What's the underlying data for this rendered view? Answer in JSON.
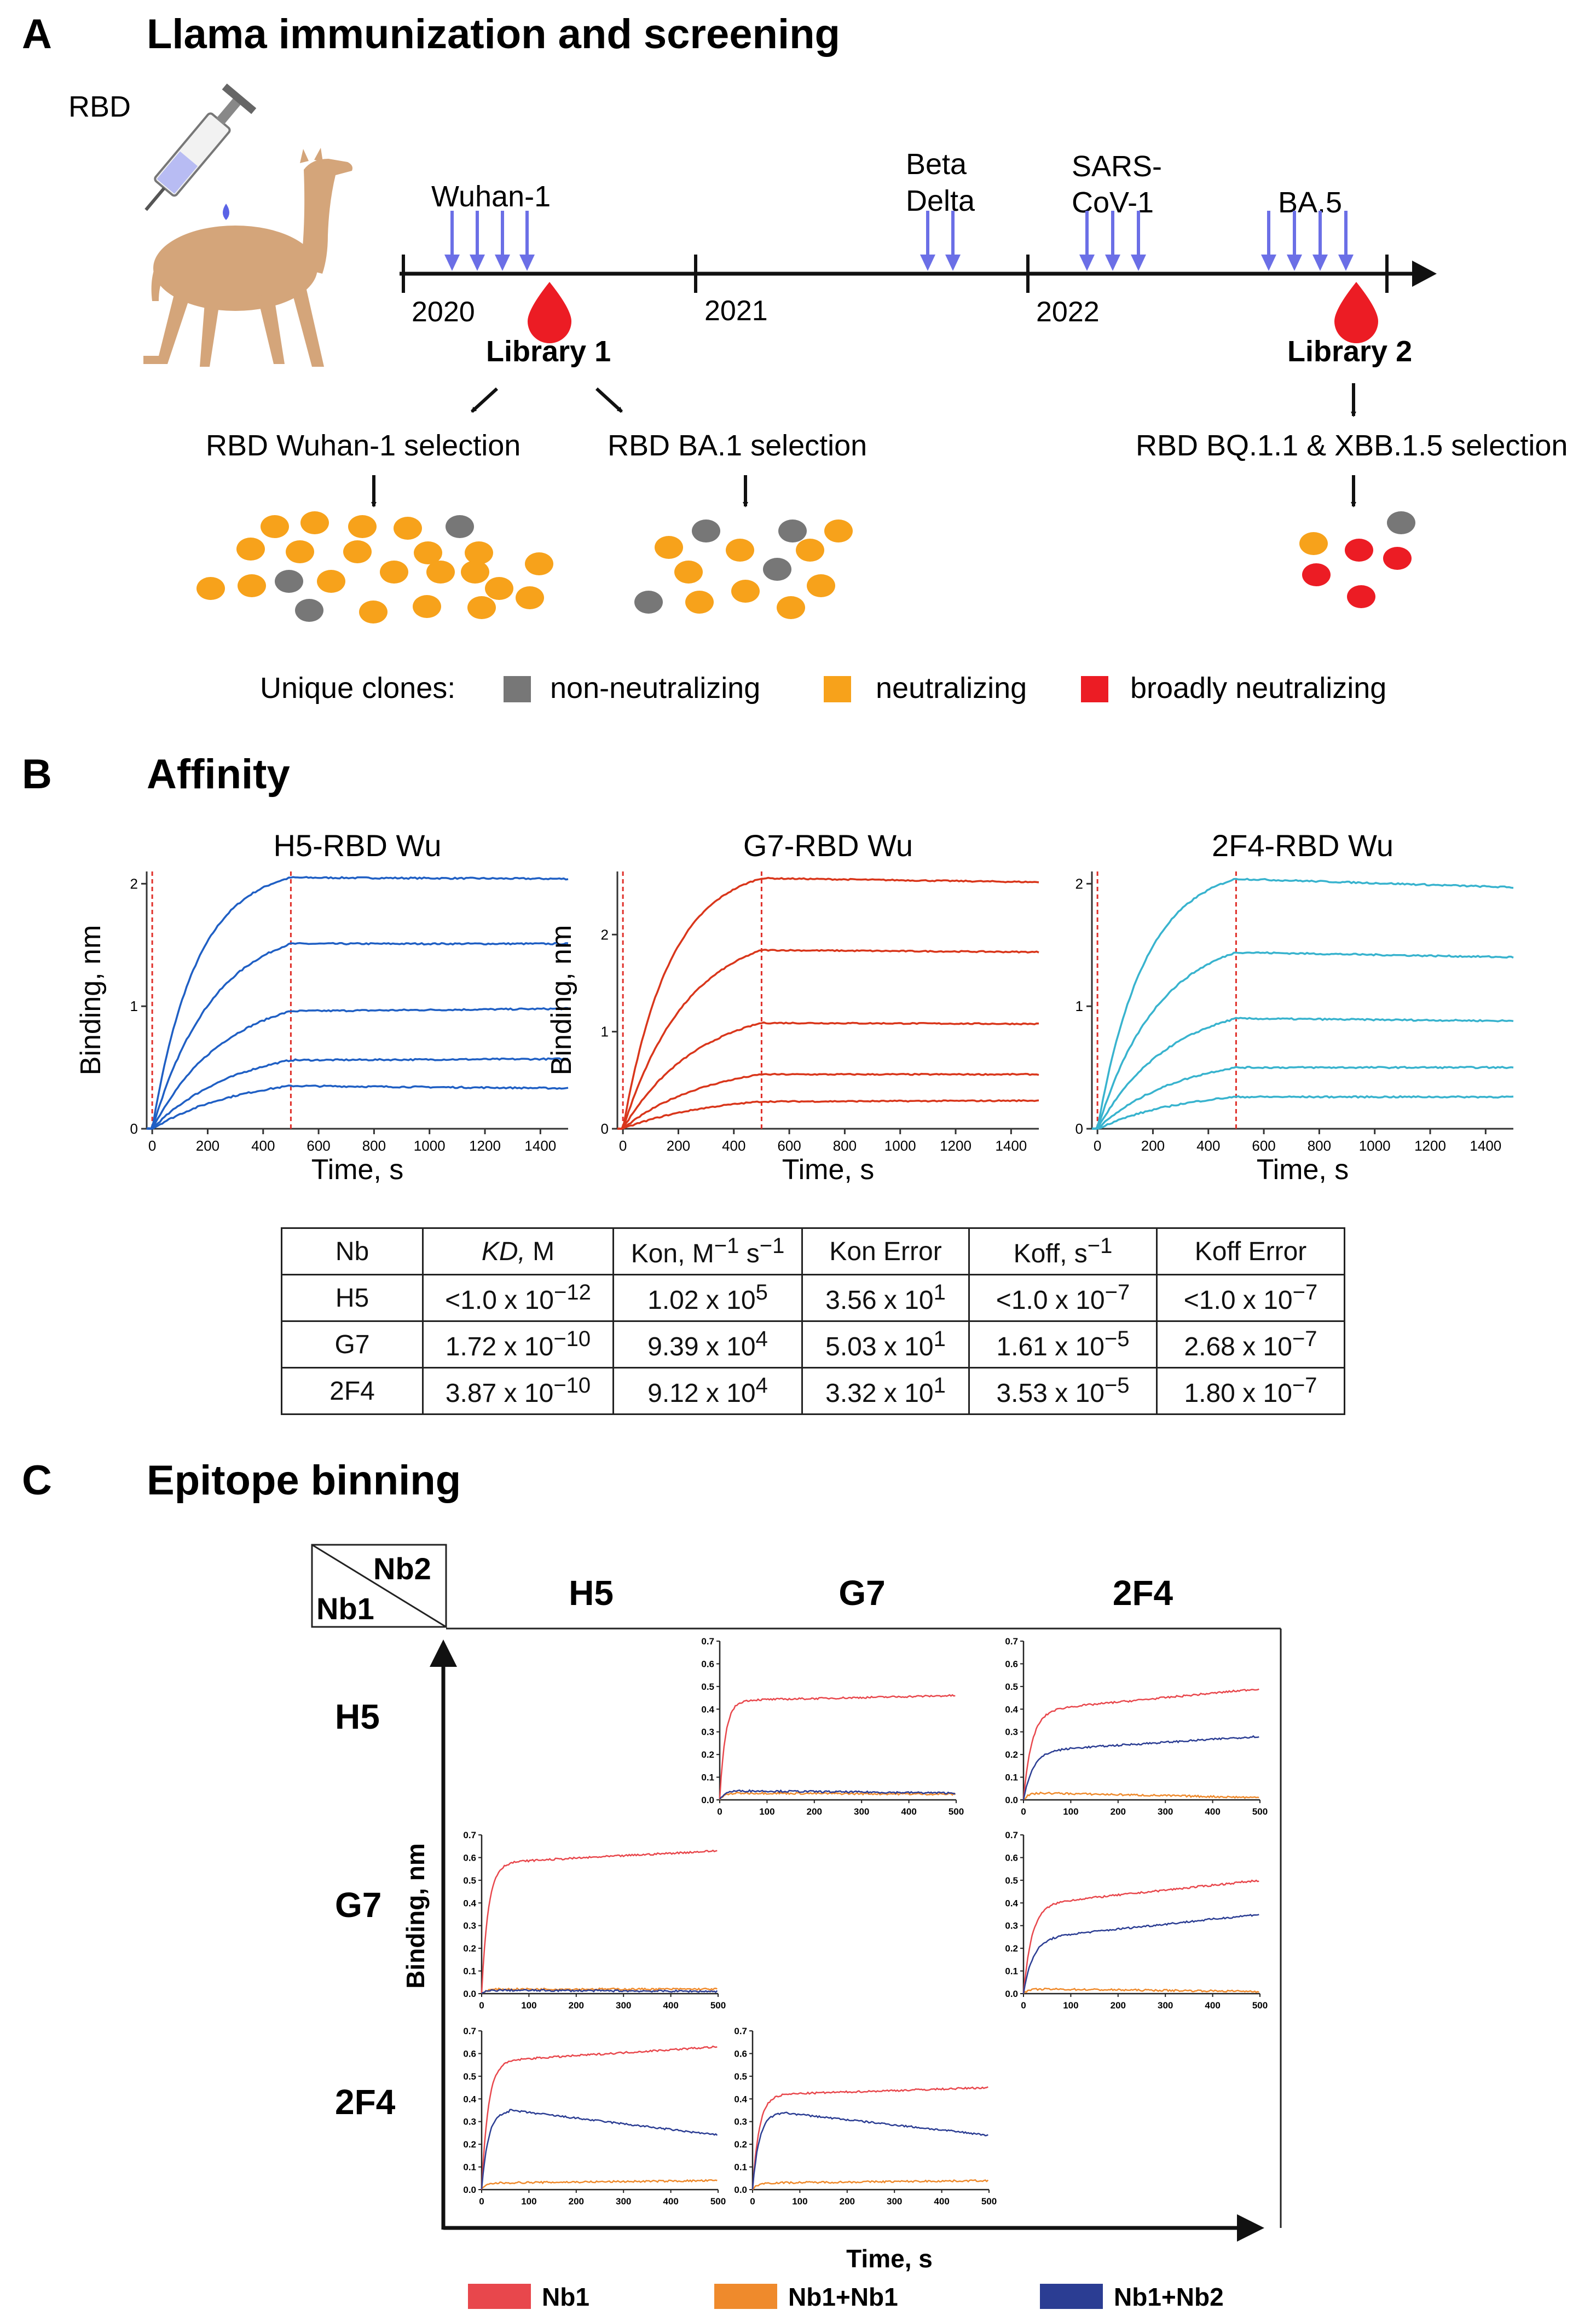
{
  "panel_a": {
    "letter": "A",
    "title": "Llama immunization and screening",
    "antigen": "RBD",
    "years": [
      "2020",
      "2021",
      "2022"
    ],
    "immunizations": [
      "Wuhan-1",
      "Beta",
      "Delta",
      "SARS-",
      "CoV-1",
      "BA.5"
    ],
    "libraries": [
      "Library 1",
      "Library 2"
    ],
    "selections": [
      "RBD Wuhan-1 selection",
      "RBD BA.1 selection",
      "RBD BQ.1.1 & XBB.1.5 selection"
    ],
    "legend_title": "Unique clones:",
    "legend": [
      {
        "label": "non-neutralizing",
        "color": "#777777"
      },
      {
        "label": "neutralizing",
        "color": "#f7a21b"
      },
      {
        "label": "broadly neutralizing",
        "color": "#ec1c24"
      }
    ]
  },
  "panel_b": {
    "letter": "B",
    "title": "Affinity",
    "table": {
      "header": [
        "Nb",
        "KD,",
        " M",
        "Kon, M",
        "−1",
        " s",
        "−1",
        "Kon Error",
        "Koff, s",
        "−1",
        "Koff Error"
      ],
      "rows": [
        [
          "H5",
          "<1.0 x 10",
          "−12",
          "1.02 x 10",
          "5",
          "3.56 x 10",
          "1",
          "<1.0 x 10",
          "−7",
          "<1.0 x 10",
          "−7"
        ],
        [
          "G7",
          "1.72 x 10",
          "−10",
          "9.39 x 10",
          "4",
          "5.03 x 10",
          "1",
          "1.61 x 10",
          "−5",
          "2.68 x 10",
          "−7"
        ],
        [
          "2F4",
          "3.87 x 10",
          "−10",
          "9.12 x 10",
          "4",
          "3.32 x 10",
          "1",
          "3.53 x 10",
          "−5",
          "1.80 x 10",
          "−7"
        ]
      ]
    }
  },
  "panel_c": {
    "letter": "C",
    "title": "Epitope binning",
    "corner_nb2": "Nb2",
    "corner_nb1": "Nb1",
    "col_labels": [
      "H5",
      "G7",
      "2F4"
    ],
    "row_labels": [
      "H5",
      "G7",
      "2F4"
    ],
    "xlabel": "Time, s",
    "ylabel": "Binding, nm",
    "legend": [
      {
        "label": "Nb1",
        "color": "#e8474c"
      },
      {
        "label": "Nb1+Nb1",
        "color": "#ef8a2c"
      },
      {
        "label": "Nb1+Nb2",
        "color": "#2b3d93"
      }
    ]
  },
  "chart_data": [
    {
      "type": "line",
      "title": "H5-RBD Wu",
      "xlabel": "Time, s",
      "ylabel": "Binding, nm",
      "xlim": [
        -20,
        1500
      ],
      "ylim": [
        0,
        2.1
      ],
      "xticks": [
        0,
        200,
        400,
        600,
        800,
        1000,
        1200,
        1400
      ],
      "yticks": [
        0,
        1,
        2
      ],
      "color": "#1f5fc4",
      "association_end": 500,
      "series": [
        {
          "name": "c1",
          "plateau": 2.05,
          "tau": 160,
          "end": 2.04
        },
        {
          "name": "c2",
          "plateau": 1.51,
          "tau": 220,
          "end": 1.51
        },
        {
          "name": "c3",
          "plateau": 0.96,
          "tau": 260,
          "end": 0.98
        },
        {
          "name": "c4",
          "plateau": 0.56,
          "tau": 300,
          "end": 0.57
        },
        {
          "name": "c5",
          "plateau": 0.35,
          "tau": 320,
          "end": 0.33
        }
      ]
    },
    {
      "type": "line",
      "title": "G7-RBD Wu",
      "xlabel": "Time, s",
      "ylabel": "Binding, nm",
      "xlim": [
        -20,
        1500
      ],
      "ylim": [
        0,
        2.65
      ],
      "xticks": [
        0,
        200,
        400,
        600,
        800,
        1000,
        1200,
        1400
      ],
      "yticks": [
        0,
        1,
        2
      ],
      "color": "#d9361b",
      "association_end": 500,
      "series": [
        {
          "name": "c1",
          "plateau": 2.58,
          "tau": 170,
          "end": 2.54
        },
        {
          "name": "c2",
          "plateau": 1.84,
          "tau": 230,
          "end": 1.82
        },
        {
          "name": "c3",
          "plateau": 1.09,
          "tau": 270,
          "end": 1.08
        },
        {
          "name": "c4",
          "plateau": 0.56,
          "tau": 300,
          "end": 0.56
        },
        {
          "name": "c5",
          "plateau": 0.28,
          "tau": 320,
          "end": 0.29
        }
      ]
    },
    {
      "type": "line",
      "title": "2F4-RBD Wu",
      "xlabel": "Time, s",
      "ylabel": "",
      "xlim": [
        -20,
        1500
      ],
      "ylim": [
        0,
        2.1
      ],
      "xticks": [
        0,
        200,
        400,
        600,
        800,
        1000,
        1200,
        1400
      ],
      "yticks": [
        0,
        1,
        2
      ],
      "color": "#38b3ce",
      "association_end": 500,
      "series": [
        {
          "name": "c1",
          "plateau": 2.04,
          "tau": 170,
          "end": 1.97
        },
        {
          "name": "c2",
          "plateau": 1.44,
          "tau": 220,
          "end": 1.4
        },
        {
          "name": "c3",
          "plateau": 0.9,
          "tau": 260,
          "end": 0.88
        },
        {
          "name": "c4",
          "plateau": 0.5,
          "tau": 290,
          "end": 0.5
        },
        {
          "name": "c5",
          "plateau": 0.26,
          "tau": 310,
          "end": 0.26
        }
      ]
    },
    {
      "type": "line",
      "title": "Nb1 H5 / Nb2 G7",
      "xlim": [
        0,
        500
      ],
      "ylim": [
        0,
        0.7
      ],
      "xticks": [
        0,
        100,
        200,
        300,
        400,
        500
      ],
      "yticks": [
        0.0,
        0.1,
        0.2,
        0.3,
        0.4,
        0.5,
        0.6,
        0.7
      ],
      "series": [
        {
          "name": "Nb1",
          "color": "#e8474c",
          "plateau": 0.44,
          "tau": 12,
          "end": 0.46
        },
        {
          "name": "Nb1+Nb1",
          "color": "#ef8a2c",
          "plateau": 0.03,
          "tau": 10,
          "end": 0.025
        },
        {
          "name": "Nb1+Nb2",
          "color": "#2b3d93",
          "plateau": 0.04,
          "tau": 10,
          "end": 0.03
        }
      ]
    },
    {
      "type": "line",
      "title": "Nb1 H5 / Nb2 2F4",
      "xlim": [
        0,
        500
      ],
      "ylim": [
        0,
        0.7
      ],
      "xticks": [
        0,
        100,
        200,
        300,
        400,
        500
      ],
      "yticks": [
        0.0,
        0.1,
        0.2,
        0.3,
        0.4,
        0.5,
        0.6,
        0.7
      ],
      "series": [
        {
          "name": "Nb1",
          "color": "#e8474c",
          "plateau": 0.4,
          "tau": 18,
          "end": 0.49
        },
        {
          "name": "Nb1+Nb1",
          "color": "#ef8a2c",
          "plateau": 0.03,
          "tau": 10,
          "end": 0.01
        },
        {
          "name": "Nb1+Nb2",
          "color": "#2b3d93",
          "plateau": 0.22,
          "tau": 20,
          "end": 0.28
        }
      ]
    },
    {
      "type": "line",
      "title": "Nb1 G7 / Nb2 H5",
      "xlim": [
        0,
        500
      ],
      "ylim": [
        0,
        0.7
      ],
      "xticks": [
        0,
        100,
        200,
        300,
        400,
        500
      ],
      "yticks": [
        0.0,
        0.1,
        0.2,
        0.3,
        0.4,
        0.5,
        0.6,
        0.7
      ],
      "series": [
        {
          "name": "Nb1",
          "color": "#e8474c",
          "plateau": 0.58,
          "tau": 14,
          "end": 0.63
        },
        {
          "name": "Nb1+Nb1",
          "color": "#ef8a2c",
          "plateau": 0.02,
          "tau": 10,
          "end": 0.02
        },
        {
          "name": "Nb1+Nb2",
          "color": "#2b3d93",
          "plateau": 0.015,
          "tau": 10,
          "end": 0.01
        }
      ]
    },
    {
      "type": "line",
      "title": "Nb1 G7 / Nb2 2F4",
      "xlim": [
        0,
        500
      ],
      "ylim": [
        0,
        0.7
      ],
      "xticks": [
        0,
        100,
        200,
        300,
        400,
        500
      ],
      "yticks": [
        0.0,
        0.1,
        0.2,
        0.3,
        0.4,
        0.5,
        0.6,
        0.7
      ],
      "series": [
        {
          "name": "Nb1",
          "color": "#e8474c",
          "plateau": 0.4,
          "tau": 18,
          "end": 0.5
        },
        {
          "name": "Nb1+Nb1",
          "color": "#ef8a2c",
          "plateau": 0.02,
          "tau": 10,
          "end": 0.01
        },
        {
          "name": "Nb1+Nb2",
          "color": "#2b3d93",
          "plateau": 0.25,
          "tau": 20,
          "end": 0.35
        }
      ]
    },
    {
      "type": "line",
      "title": "Nb1 2F4 / Nb2 H5",
      "xlim": [
        0,
        500
      ],
      "ylim": [
        0,
        0.7
      ],
      "xticks": [
        0,
        100,
        200,
        300,
        400,
        500
      ],
      "yticks": [
        0.0,
        0.1,
        0.2,
        0.3,
        0.4,
        0.5,
        0.6,
        0.7
      ],
      "series": [
        {
          "name": "Nb1",
          "color": "#e8474c",
          "plateau": 0.57,
          "tau": 14,
          "end": 0.63
        },
        {
          "name": "Nb1+Nb1",
          "color": "#ef8a2c",
          "plateau": 0.03,
          "tau": 10,
          "end": 0.04
        },
        {
          "name": "Nb1+Nb2",
          "color": "#2b3d93",
          "plateau": 0.35,
          "tau": 14,
          "end": 0.24,
          "peak": true
        }
      ]
    },
    {
      "type": "line",
      "title": "Nb1 2F4 / Nb2 G7",
      "xlim": [
        0,
        500
      ],
      "ylim": [
        0,
        0.7
      ],
      "xticks": [
        0,
        100,
        200,
        300,
        400,
        500
      ],
      "yticks": [
        0.0,
        0.1,
        0.2,
        0.3,
        0.4,
        0.5,
        0.6,
        0.7
      ],
      "series": [
        {
          "name": "Nb1",
          "color": "#e8474c",
          "plateau": 0.42,
          "tau": 14,
          "end": 0.45
        },
        {
          "name": "Nb1+Nb1",
          "color": "#ef8a2c",
          "plateau": 0.03,
          "tau": 10,
          "end": 0.04
        },
        {
          "name": "Nb1+Nb2",
          "color": "#2b3d93",
          "plateau": 0.34,
          "tau": 14,
          "end": 0.24,
          "peak": true
        }
      ]
    }
  ]
}
